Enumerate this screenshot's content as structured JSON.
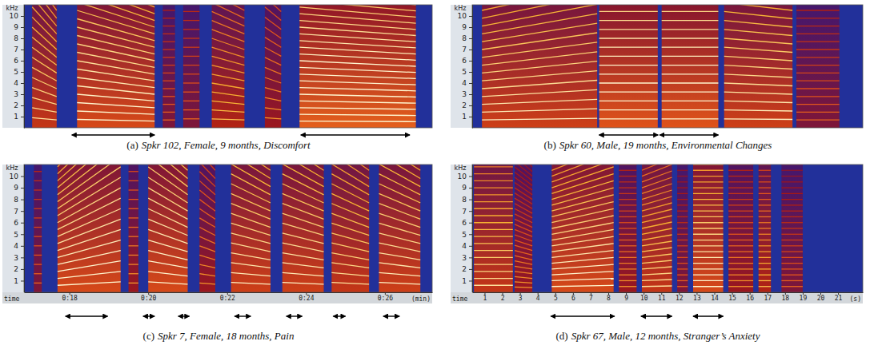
{
  "chart_data": [
    {
      "type": "spectrogram",
      "label": "(a)",
      "caption": "Spkr 102, Female, 9 months, Discomfort",
      "ylabel": "kHz",
      "xlim": [
        0,
        10
      ],
      "ylim": [
        0,
        11
      ],
      "yticks": [
        1,
        2,
        3,
        4,
        5,
        6,
        7,
        8,
        9,
        10
      ],
      "tick_labels": "y",
      "segments": [
        {
          "start": 0.2,
          "end": 0.8,
          "f0_start": 0.9,
          "f0_end": 0.7,
          "energy": 0.8
        },
        {
          "start": 1.3,
          "end": 3.2,
          "f0_start": 0.75,
          "f0_end": 0.6,
          "energy": 0.9
        },
        {
          "start": 3.4,
          "end": 3.7,
          "f0_start": 0.7,
          "f0_end": 0.7,
          "energy": 0.5
        },
        {
          "start": 3.9,
          "end": 4.3,
          "f0_start": 0.8,
          "f0_end": 0.8,
          "energy": 0.5
        },
        {
          "start": 4.6,
          "end": 5.4,
          "f0_start": 0.8,
          "f0_end": 0.7,
          "energy": 0.7
        },
        {
          "start": 5.9,
          "end": 6.3,
          "f0_start": 0.9,
          "f0_end": 0.8,
          "energy": 0.6
        },
        {
          "start": 6.75,
          "end": 9.6,
          "f0_start": 0.6,
          "f0_end": 0.55,
          "energy": 1.0
        }
      ],
      "intervals": [
        [
          1.17,
          3.2
        ],
        [
          6.78,
          9.45
        ]
      ]
    },
    {
      "type": "spectrogram",
      "label": "(b)",
      "caption": "Spkr 60, Male, 19 months, Environmental Changes",
      "ylabel": "kHz",
      "xlim": [
        0,
        10
      ],
      "ylim": [
        0,
        11
      ],
      "yticks": [
        1,
        2,
        3,
        4,
        5,
        6,
        7,
        8,
        9,
        10
      ],
      "tick_labels": "y",
      "segments": [
        {
          "start": 0.25,
          "end": 3.2,
          "f0_start": 0.7,
          "f0_end": 0.85,
          "energy": 0.85
        },
        {
          "start": 3.25,
          "end": 4.75,
          "f0_start": 0.8,
          "f0_end": 0.8,
          "energy": 0.95
        },
        {
          "start": 4.85,
          "end": 6.3,
          "f0_start": 0.8,
          "f0_end": 0.8,
          "energy": 0.95
        },
        {
          "start": 6.45,
          "end": 8.2,
          "f0_start": 0.8,
          "f0_end": 0.75,
          "energy": 0.85
        },
        {
          "start": 8.3,
          "end": 9.4,
          "f0_start": 0.7,
          "f0_end": 0.7,
          "energy": 0.5
        }
      ],
      "intervals": [
        [
          3.25,
          4.76
        ],
        [
          4.8,
          6.3
        ]
      ]
    },
    {
      "type": "spectrogram",
      "label": "(c)",
      "caption": "Spkr 7, Female, 18 months, Pain",
      "ylabel": "kHz",
      "xlabel": "time",
      "x_unit": "(min)",
      "xlim": [
        16.85,
        27.2
      ],
      "ylim": [
        0,
        11
      ],
      "xticks": [
        {
          "value": 18,
          "label": "0:18"
        },
        {
          "value": 20,
          "label": "0:20"
        },
        {
          "value": 22,
          "label": "0:22"
        },
        {
          "value": 24,
          "label": "0:24"
        },
        {
          "value": 26,
          "label": "0:26"
        }
      ],
      "yticks": [
        1,
        2,
        3,
        4,
        5,
        6,
        7,
        8,
        9,
        10
      ],
      "tick_labels": true,
      "segments": [
        {
          "start": 17.1,
          "end": 17.3,
          "f0_start": 0.8,
          "f0_end": 0.8,
          "energy": 0.5
        },
        {
          "start": 17.7,
          "end": 19.3,
          "f0_start": 0.6,
          "f0_end": 0.9,
          "energy": 0.9
        },
        {
          "start": 19.5,
          "end": 19.75,
          "f0_start": 0.8,
          "f0_end": 0.8,
          "energy": 0.6
        },
        {
          "start": 20.0,
          "end": 21.0,
          "f0_start": 0.9,
          "f0_end": 0.7,
          "energy": 0.9
        },
        {
          "start": 21.3,
          "end": 21.7,
          "f0_start": 0.8,
          "f0_end": 0.7,
          "energy": 0.6
        },
        {
          "start": 22.1,
          "end": 23.1,
          "f0_start": 0.85,
          "f0_end": 0.7,
          "energy": 0.85
        },
        {
          "start": 23.4,
          "end": 24.45,
          "f0_start": 0.85,
          "f0_end": 0.7,
          "energy": 0.85
        },
        {
          "start": 24.65,
          "end": 25.6,
          "f0_start": 0.85,
          "f0_end": 0.7,
          "energy": 0.8
        },
        {
          "start": 25.85,
          "end": 26.9,
          "f0_start": 0.85,
          "f0_end": 0.7,
          "energy": 0.85
        }
      ],
      "intervals": [
        [
          17.9,
          18.97
        ],
        [
          19.87,
          20.16
        ],
        [
          20.76,
          21.04
        ],
        [
          22.19,
          22.6
        ],
        [
          23.5,
          23.9
        ],
        [
          24.69,
          25.0
        ],
        [
          25.96,
          26.37
        ]
      ]
    },
    {
      "type": "spectrogram",
      "label": "(d)",
      "caption": "Spkr 67, Male, 12 months, Stranger’s Anxiety",
      "ylabel": "kHz",
      "xlabel": "time",
      "x_unit": "(s)",
      "xlim": [
        0.3,
        22.4
      ],
      "ylim": [
        0,
        11
      ],
      "xticks": [
        1,
        2,
        3,
        4,
        5,
        6,
        7,
        8,
        9,
        10,
        11,
        12,
        13,
        14,
        15,
        16,
        17,
        18,
        19,
        20,
        21
      ],
      "yticks": [
        1,
        2,
        3,
        4,
        5,
        6,
        7,
        8,
        9,
        10
      ],
      "tick_labels": true,
      "segments": [
        {
          "start": 0.4,
          "end": 2.6,
          "f0_start": 0.6,
          "f0_end": 0.6,
          "energy": 0.8
        },
        {
          "start": 2.7,
          "end": 3.7,
          "f0_start": 0.45,
          "f0_end": 0.4,
          "energy": 0.6
        },
        {
          "start": 4.8,
          "end": 8.3,
          "f0_start": 0.5,
          "f0_end": 0.6,
          "energy": 0.9
        },
        {
          "start": 8.6,
          "end": 9.6,
          "f0_start": 0.5,
          "f0_end": 0.5,
          "energy": 0.6
        },
        {
          "start": 9.9,
          "end": 11.6,
          "f0_start": 0.5,
          "f0_end": 0.55,
          "energy": 0.8
        },
        {
          "start": 11.9,
          "end": 12.5,
          "f0_start": 0.5,
          "f0_end": 0.5,
          "energy": 0.5
        },
        {
          "start": 12.8,
          "end": 14.5,
          "f0_start": 0.5,
          "f0_end": 0.5,
          "energy": 0.9
        },
        {
          "start": 14.8,
          "end": 16.2,
          "f0_start": 0.5,
          "f0_end": 0.5,
          "energy": 0.6
        },
        {
          "start": 16.5,
          "end": 17.2,
          "f0_start": 0.5,
          "f0_end": 0.5,
          "energy": 0.7
        },
        {
          "start": 17.8,
          "end": 19.0,
          "f0_start": 0.5,
          "f0_end": 0.5,
          "energy": 0.5
        }
      ],
      "intervals": [
        [
          4.75,
          8.35
        ],
        [
          9.85,
          11.6
        ],
        [
          12.8,
          14.5
        ]
      ]
    }
  ]
}
